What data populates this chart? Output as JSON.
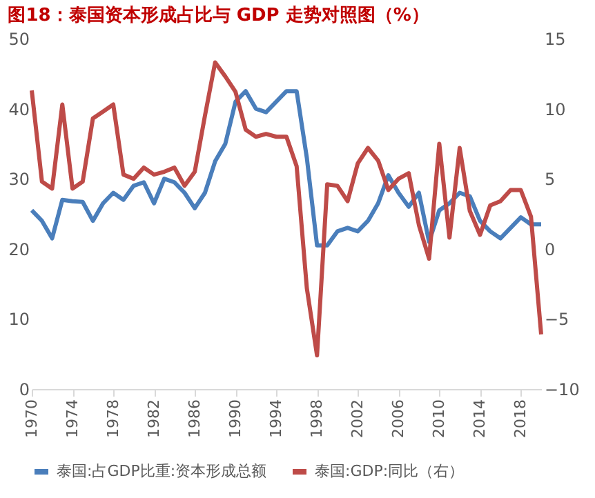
{
  "chart_data": {
    "type": "line",
    "title": "图18：泰国资本形成占比与 GDP 走势对照图（%）",
    "x": [
      1970,
      1971,
      1972,
      1973,
      1974,
      1975,
      1976,
      1977,
      1978,
      1979,
      1980,
      1981,
      1982,
      1983,
      1984,
      1985,
      1986,
      1987,
      1988,
      1989,
      1990,
      1991,
      1992,
      1993,
      1994,
      1995,
      1996,
      1997,
      1998,
      1999,
      2000,
      2001,
      2002,
      2003,
      2004,
      2005,
      2006,
      2007,
      2008,
      2009,
      2010,
      2011,
      2012,
      2013,
      2014,
      2015,
      2016,
      2017,
      2018,
      2019,
      2020
    ],
    "series": [
      {
        "name": "泰国:占GDP比重:资本形成总额",
        "color": "#4a7ebb",
        "values": [
          25.5,
          24,
          21.5,
          27,
          26.8,
          26.7,
          24,
          26.5,
          28,
          27,
          29,
          29.5,
          26.5,
          30,
          29.5,
          28,
          25.8,
          28,
          32.5,
          35,
          41,
          42.5,
          40,
          39.5,
          41,
          42.5,
          42.5,
          33,
          20.5,
          20.5,
          22.5,
          23,
          22.5,
          24,
          26.5,
          30.5,
          28,
          26,
          28,
          21,
          25.5,
          26.5,
          28,
          27.5,
          24,
          22.5,
          21.5,
          23,
          24.5,
          23.5,
          23.5
        ]
      },
      {
        "name": "泰国:GDP:同比（右）",
        "color": "#be4b48",
        "axis": "y2",
        "values": [
          11.3,
          4.8,
          4.3,
          10.3,
          4.3,
          4.8,
          9.3,
          9.8,
          10.3,
          5.3,
          5,
          5.8,
          5.3,
          5.5,
          5.8,
          4.5,
          5.5,
          9.5,
          13.3,
          12.3,
          11.2,
          8.5,
          8,
          8.2,
          8,
          8,
          5.9,
          -2.8,
          -7.6,
          4.6,
          4.5,
          3.4,
          6.1,
          7.2,
          6.3,
          4.2,
          5,
          5.4,
          1.7,
          -0.7,
          7.5,
          0.8,
          7.2,
          2.7,
          1,
          3.1,
          3.4,
          4.2,
          4.2,
          2.3,
          -6.1
        ]
      }
    ],
    "xlim": [
      1970,
      2020
    ],
    "xticks": [
      1970,
      1974,
      1978,
      1982,
      1986,
      1990,
      1994,
      1998,
      2002,
      2006,
      2010,
      2014,
      2018
    ],
    "ylim": [
      0,
      50
    ],
    "yticks": [
      0,
      10,
      20,
      30,
      40,
      50
    ],
    "y2lim": [
      -10,
      15
    ],
    "y2ticks": [
      -10,
      -5,
      0,
      5,
      10,
      15
    ],
    "grid": false,
    "legend": "bottom",
    "line_style": "solid",
    "marker": "none"
  }
}
